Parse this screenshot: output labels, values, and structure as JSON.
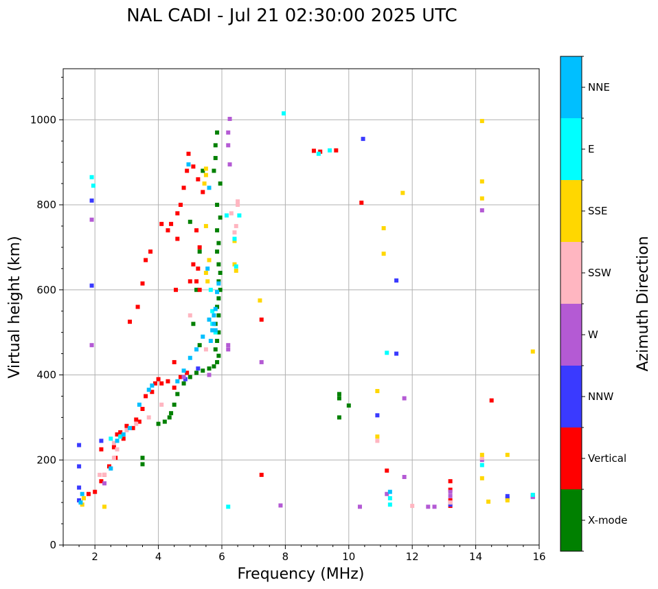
{
  "chart_data": {
    "type": "scatter",
    "title": "NAL CADI - Jul 21 02:30:00 2025 UTC",
    "xlabel": "Frequency (MHz)",
    "ylabel": "Virtual height (km)",
    "xlim": [
      1,
      16
    ],
    "ylim": [
      0,
      1120
    ],
    "xticks": [
      2,
      4,
      6,
      8,
      10,
      12,
      14,
      16
    ],
    "yticks": [
      0,
      200,
      400,
      600,
      800,
      1000
    ],
    "grid": true,
    "colorbar": {
      "label": "Azimuth Direction",
      "categories": [
        "X-mode",
        "Vertical",
        "NNW",
        "W",
        "SSW",
        "SSE",
        "E",
        "NNE"
      ],
      "colors": [
        "#008000",
        "#ff0000",
        "#3a3aff",
        "#b45ad4",
        "#ffb6c1",
        "#ffd700",
        "#00ffff",
        "#00bfff"
      ]
    },
    "series": [
      {
        "name": "X-mode",
        "points": [
          [
            3.5,
            190
          ],
          [
            4.6,
            355
          ],
          [
            4.8,
            380
          ],
          [
            5.0,
            395
          ],
          [
            5.2,
            405
          ],
          [
            5.4,
            410
          ],
          [
            5.6,
            415
          ],
          [
            5.75,
            420
          ],
          [
            5.85,
            430
          ],
          [
            5.9,
            445
          ],
          [
            5.8,
            460
          ],
          [
            5.85,
            480
          ],
          [
            5.9,
            500
          ],
          [
            5.8,
            520
          ],
          [
            5.9,
            540
          ],
          [
            5.85,
            560
          ],
          [
            5.9,
            580
          ],
          [
            5.95,
            600
          ],
          [
            5.9,
            620
          ],
          [
            5.95,
            640
          ],
          [
            5.9,
            660
          ],
          [
            5.85,
            690
          ],
          [
            5.9,
            710
          ],
          [
            5.85,
            740
          ],
          [
            5.95,
            770
          ],
          [
            5.85,
            800
          ],
          [
            5.95,
            850
          ],
          [
            5.75,
            880
          ],
          [
            5.8,
            910
          ],
          [
            5.8,
            940
          ],
          [
            5.85,
            970
          ],
          [
            4.2,
            290
          ],
          [
            4.0,
            285
          ],
          [
            4.4,
            310
          ],
          [
            4.5,
            330
          ],
          [
            4.35,
            300
          ],
          [
            9.7,
            355
          ],
          [
            9.7,
            345
          ],
          [
            10.0,
            328
          ],
          [
            9.7,
            300
          ],
          [
            5.3,
            470
          ],
          [
            5.1,
            520
          ],
          [
            5.2,
            600
          ],
          [
            5.3,
            690
          ],
          [
            5.0,
            760
          ],
          [
            5.4,
            880
          ],
          [
            3.5,
            205
          ]
        ]
      },
      {
        "name": "Vertical",
        "points": [
          [
            1.8,
            120
          ],
          [
            2.0,
            125
          ],
          [
            2.2,
            150
          ],
          [
            2.3,
            165
          ],
          [
            2.45,
            185
          ],
          [
            2.6,
            230
          ],
          [
            2.7,
            260
          ],
          [
            2.9,
            250
          ],
          [
            3.2,
            275
          ],
          [
            3.4,
            290
          ],
          [
            3.5,
            320
          ],
          [
            3.6,
            350
          ],
          [
            3.8,
            360
          ],
          [
            3.9,
            380
          ],
          [
            4.0,
            390
          ],
          [
            4.1,
            380
          ],
          [
            4.3,
            385
          ],
          [
            4.5,
            370
          ],
          [
            4.7,
            395
          ],
          [
            4.9,
            405
          ],
          [
            4.5,
            430
          ],
          [
            3.1,
            525
          ],
          [
            3.35,
            560
          ],
          [
            3.5,
            615
          ],
          [
            3.6,
            670
          ],
          [
            3.75,
            690
          ],
          [
            4.1,
            755
          ],
          [
            4.3,
            740
          ],
          [
            4.4,
            755
          ],
          [
            4.6,
            780
          ],
          [
            4.7,
            800
          ],
          [
            4.8,
            840
          ],
          [
            4.9,
            880
          ],
          [
            4.95,
            920
          ],
          [
            5.1,
            890
          ],
          [
            5.25,
            860
          ],
          [
            5.4,
            830
          ],
          [
            5.2,
            740
          ],
          [
            5.3,
            700
          ],
          [
            5.1,
            660
          ],
          [
            5.2,
            620
          ],
          [
            5.3,
            600
          ],
          [
            5.0,
            620
          ],
          [
            5.25,
            650
          ],
          [
            4.6,
            720
          ],
          [
            4.55,
            600
          ],
          [
            7.25,
            165
          ],
          [
            7.25,
            530
          ],
          [
            8.9,
            927
          ],
          [
            9.1,
            925
          ],
          [
            9.6,
            928
          ],
          [
            10.4,
            805
          ],
          [
            11.2,
            175
          ],
          [
            13.2,
            150
          ],
          [
            13.2,
            130
          ],
          [
            13.2,
            105
          ],
          [
            13.2,
            92
          ],
          [
            14.5,
            340
          ],
          [
            15.8,
            117
          ],
          [
            3.0,
            280
          ],
          [
            2.8,
            265
          ],
          [
            3.3,
            295
          ],
          [
            2.2,
            225
          ],
          [
            2.65,
            205
          ]
        ]
      },
      {
        "name": "NNW",
        "points": [
          [
            1.5,
            235
          ],
          [
            1.5,
            185
          ],
          [
            1.5,
            135
          ],
          [
            1.5,
            105
          ],
          [
            1.9,
            610
          ],
          [
            1.9,
            810
          ],
          [
            2.2,
            245
          ],
          [
            4.85,
            390
          ],
          [
            5.25,
            415
          ],
          [
            10.45,
            955
          ],
          [
            10.9,
            305
          ],
          [
            11.5,
            622
          ],
          [
            11.5,
            450
          ],
          [
            13.2,
            95
          ],
          [
            15.0,
            115
          ],
          [
            15.0,
            110
          ],
          [
            15.8,
            113
          ]
        ]
      },
      {
        "name": "W",
        "points": [
          [
            1.9,
            470
          ],
          [
            1.9,
            765
          ],
          [
            2.3,
            145
          ],
          [
            4.8,
            395
          ],
          [
            5.6,
            400
          ],
          [
            6.2,
            470
          ],
          [
            6.2,
            460
          ],
          [
            6.25,
            1002
          ],
          [
            6.2,
            970
          ],
          [
            6.2,
            940
          ],
          [
            6.25,
            895
          ],
          [
            7.25,
            430
          ],
          [
            7.85,
            93
          ],
          [
            10.35,
            90
          ],
          [
            11.2,
            120
          ],
          [
            11.75,
            345
          ],
          [
            11.75,
            160
          ],
          [
            12.7,
            90
          ],
          [
            12.5,
            90
          ],
          [
            13.2,
            115
          ],
          [
            13.2,
            125
          ],
          [
            14.2,
            787
          ],
          [
            14.2,
            200
          ],
          [
            15.8,
            113
          ]
        ]
      },
      {
        "name": "SSW",
        "points": [
          [
            2.3,
            165
          ],
          [
            2.5,
            180
          ],
          [
            2.6,
            205
          ],
          [
            2.7,
            225
          ],
          [
            3.0,
            270
          ],
          [
            3.3,
            285
          ],
          [
            3.7,
            300
          ],
          [
            4.1,
            330
          ],
          [
            5.0,
            540
          ],
          [
            5.5,
            460
          ],
          [
            6.3,
            780
          ],
          [
            6.4,
            735
          ],
          [
            6.45,
            750
          ],
          [
            6.5,
            808
          ],
          [
            6.5,
            800
          ],
          [
            10.9,
            245
          ],
          [
            12.0,
            92
          ],
          [
            13.2,
            100
          ],
          [
            14.2,
            205
          ],
          [
            2.15,
            165
          ],
          [
            2.6,
            240
          ]
        ]
      },
      {
        "name": "SSE",
        "points": [
          [
            1.6,
            95
          ],
          [
            1.65,
            110
          ],
          [
            2.3,
            90
          ],
          [
            5.5,
            885
          ],
          [
            5.5,
            870
          ],
          [
            5.45,
            850
          ],
          [
            5.5,
            750
          ],
          [
            5.5,
            640
          ],
          [
            5.6,
            670
          ],
          [
            5.55,
            620
          ],
          [
            6.4,
            715
          ],
          [
            6.4,
            660
          ],
          [
            6.45,
            645
          ],
          [
            7.2,
            575
          ],
          [
            10.9,
            362
          ],
          [
            10.9,
            255
          ],
          [
            11.1,
            685
          ],
          [
            11.1,
            745
          ],
          [
            11.7,
            828
          ],
          [
            14.2,
            997
          ],
          [
            14.2,
            855
          ],
          [
            14.2,
            815
          ],
          [
            14.2,
            212
          ],
          [
            14.2,
            157
          ],
          [
            14.4,
            102
          ],
          [
            15.0,
            212
          ],
          [
            15.0,
            105
          ],
          [
            15.8,
            455
          ]
        ]
      },
      {
        "name": "E",
        "points": [
          [
            1.9,
            865
          ],
          [
            1.95,
            845
          ],
          [
            2.5,
            250
          ],
          [
            2.8,
            255
          ],
          [
            5.65,
            600
          ],
          [
            5.7,
            550
          ],
          [
            5.7,
            520
          ],
          [
            5.8,
            500
          ],
          [
            6.15,
            775
          ],
          [
            6.4,
            720
          ],
          [
            6.45,
            655
          ],
          [
            6.55,
            775
          ],
          [
            6.2,
            90
          ],
          [
            7.95,
            1015
          ],
          [
            9.05,
            920
          ],
          [
            9.4,
            928
          ],
          [
            11.2,
            452
          ],
          [
            11.3,
            95
          ],
          [
            11.3,
            110
          ],
          [
            14.2,
            188
          ],
          [
            15.8,
            118
          ]
        ]
      },
      {
        "name": "NNE",
        "points": [
          [
            1.6,
            120
          ],
          [
            1.55,
            100
          ],
          [
            2.5,
            180
          ],
          [
            2.7,
            245
          ],
          [
            2.9,
            260
          ],
          [
            3.1,
            275
          ],
          [
            3.4,
            330
          ],
          [
            3.7,
            365
          ],
          [
            3.8,
            375
          ],
          [
            4.6,
            385
          ],
          [
            4.8,
            410
          ],
          [
            5.0,
            440
          ],
          [
            5.2,
            460
          ],
          [
            5.4,
            490
          ],
          [
            5.6,
            530
          ],
          [
            5.65,
            480
          ],
          [
            5.7,
            505
          ],
          [
            5.75,
            520
          ],
          [
            5.8,
            505
          ],
          [
            5.75,
            540
          ],
          [
            5.8,
            555
          ],
          [
            5.85,
            595
          ],
          [
            5.9,
            615
          ],
          [
            5.55,
            650
          ],
          [
            5.6,
            840
          ],
          [
            4.95,
            895
          ],
          [
            11.3,
            125
          ]
        ]
      }
    ]
  }
}
